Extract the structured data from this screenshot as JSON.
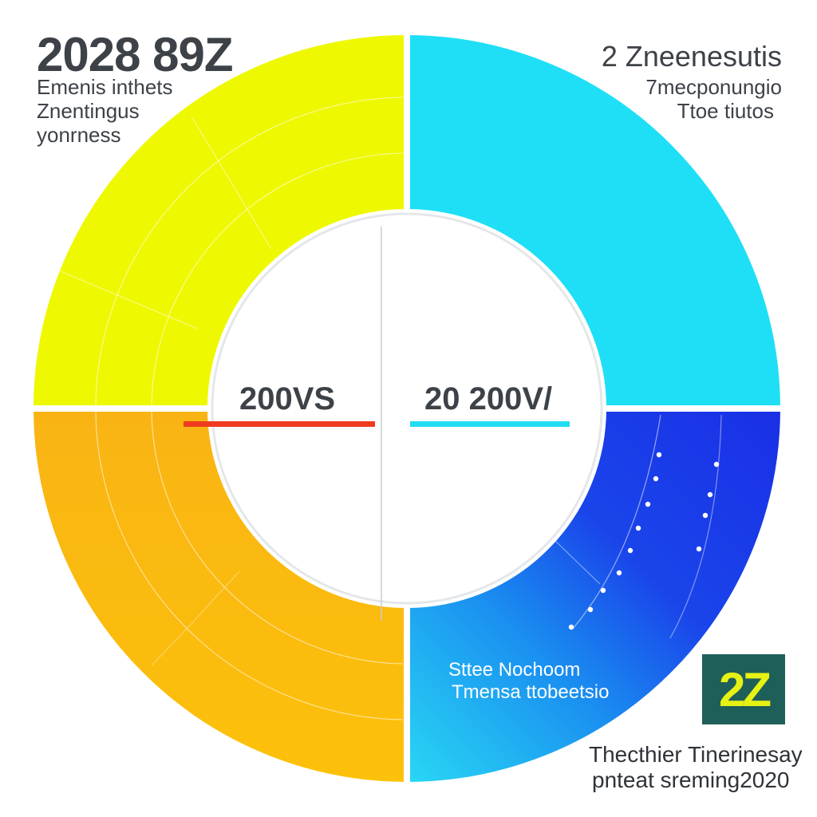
{
  "header_left": {
    "title": "2028 89Z",
    "lines": [
      "Emenis inthets",
      "Znentingus",
      "yonrness"
    ]
  },
  "header_right": {
    "title": "2 Zneenesutis",
    "lines": [
      "7mecponungio",
      "Ttoe tiutos"
    ]
  },
  "center": {
    "left_label": "200VS",
    "right_label": "20 200V/"
  },
  "inner_note": {
    "line1": "Sttee Nochoom",
    "line2": "Tmensa ttobeetsio"
  },
  "badge_text": "2Z",
  "footer": {
    "line1": "Thecthier Tinerinesay",
    "line2": "pnteat sreming2020"
  },
  "colors": {
    "yellow": "#eef800",
    "cyan": "#1fdff6",
    "orange": "#fbb910",
    "blue": "#1a3ce8",
    "red_line": "#ef3b1f",
    "cyan_line": "#22dcf2",
    "badge_bg": "#1f5f5a",
    "badge_fg": "#e6f213"
  },
  "chart_data": {
    "type": "pie",
    "donut": true,
    "categories": [
      "Top-right",
      "Bottom-right",
      "Bottom-left",
      "Top-left"
    ],
    "values": [
      25,
      25,
      25,
      25
    ],
    "colors": [
      "#1fdff6",
      "#1a3ce8",
      "#fbb910",
      "#eef800"
    ]
  }
}
